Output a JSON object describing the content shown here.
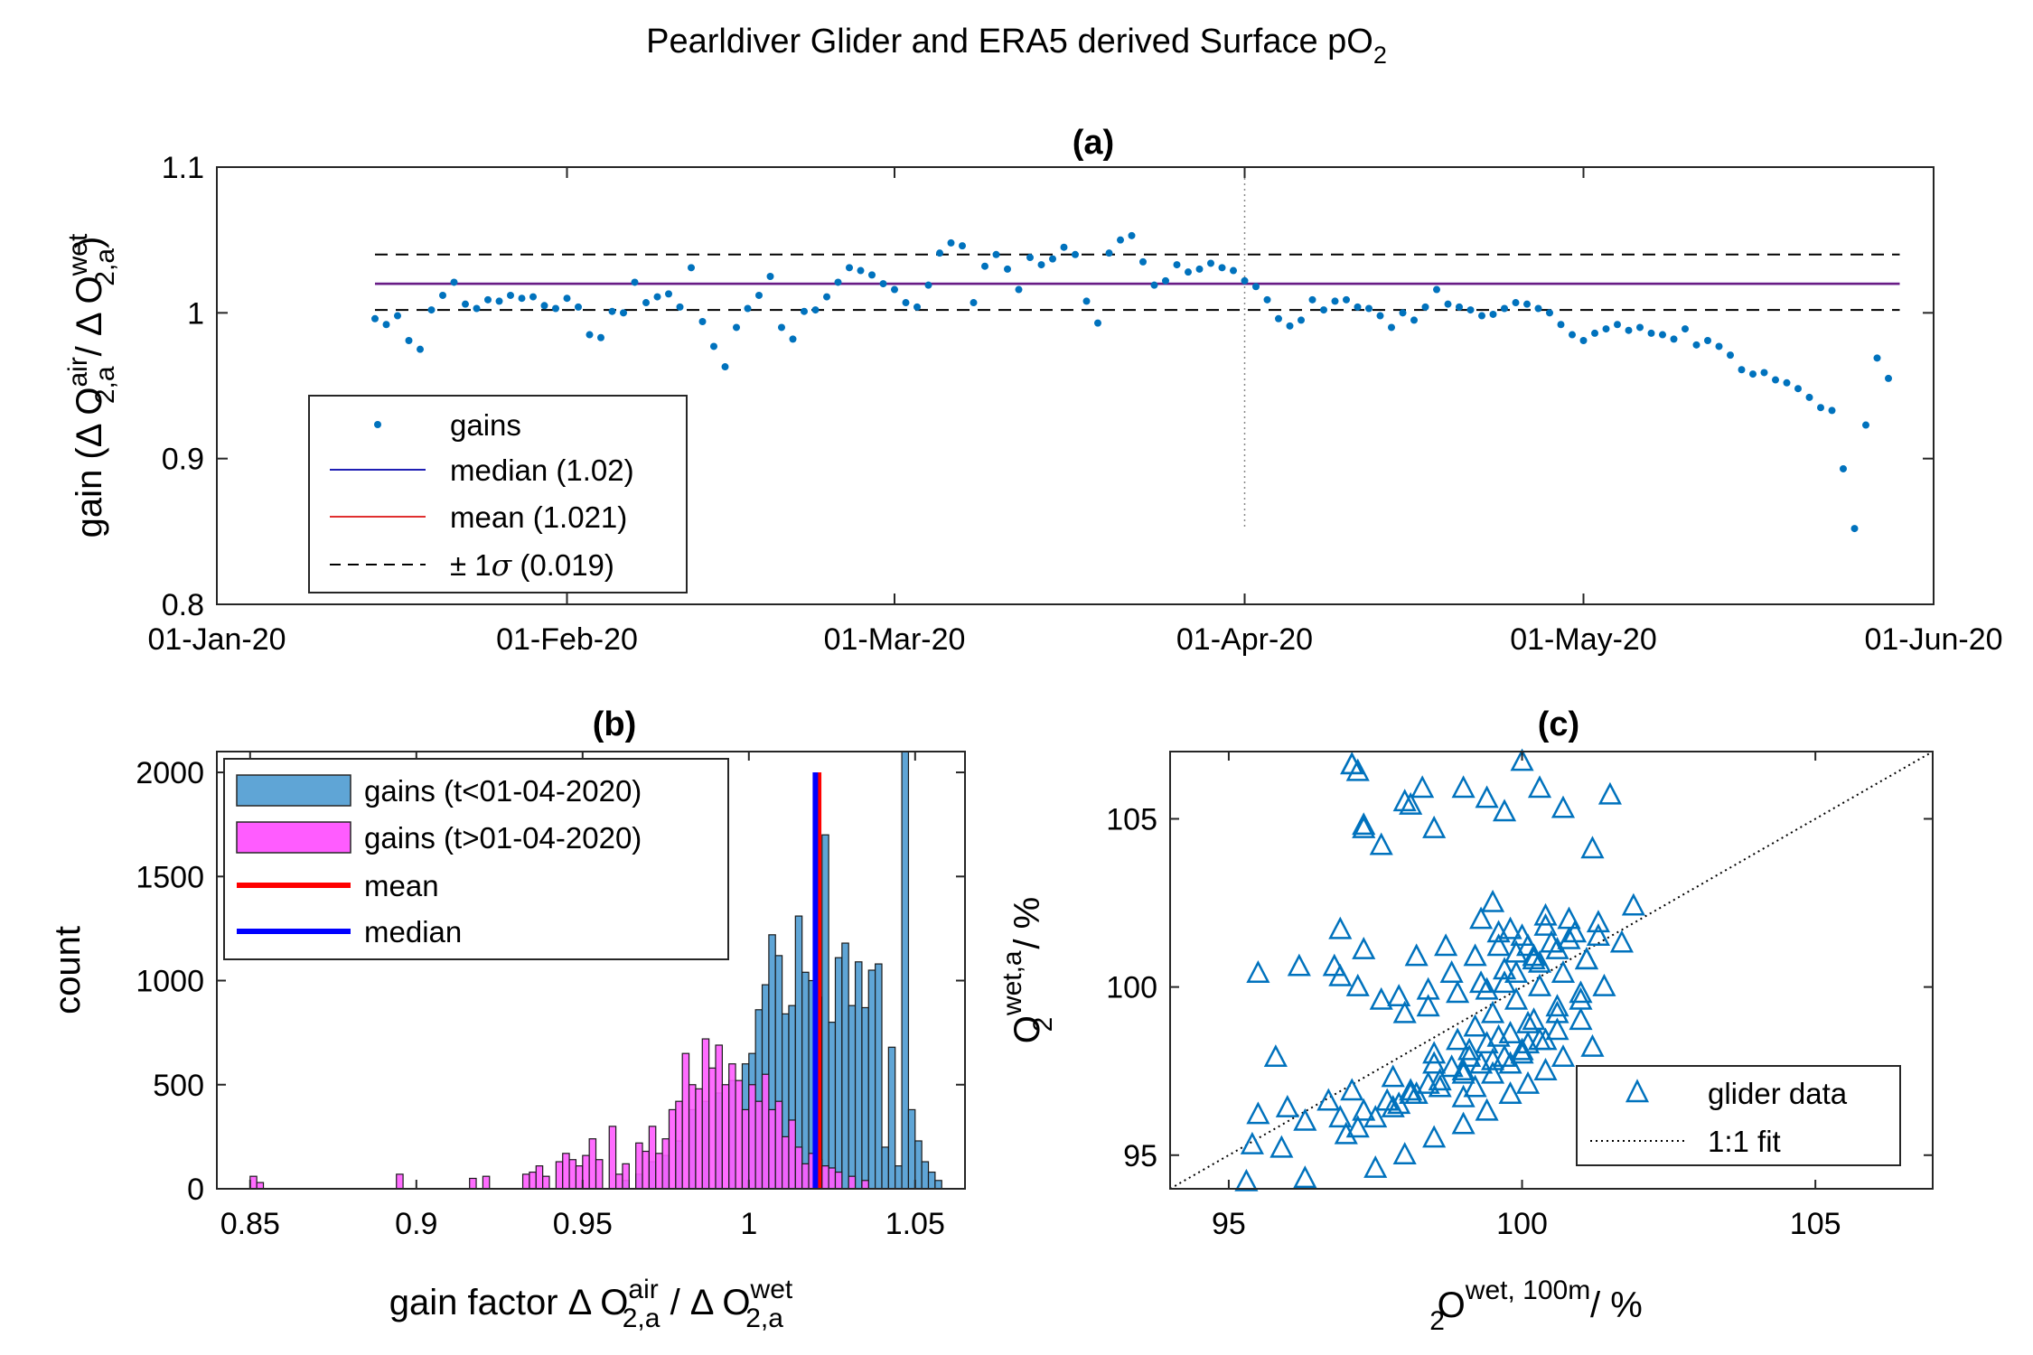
{
  "suptitle": {
    "text": "Pearldiver Glider and ERA5 derived Surface pO",
    "sub": "2"
  },
  "colors": {
    "gains": "#0072BD",
    "median_line": "#1f1fb4",
    "mean_line": "#e03030",
    "combined_line": "#7d1a78",
    "hist_before": "#5fa5d6",
    "hist_after": "#ff5cff",
    "hist_mean": "#ff0000",
    "hist_median": "#0000ff"
  },
  "chart_data": [
    {
      "id": "a",
      "type": "scatter",
      "title": "(a)",
      "ylabel_parts": [
        "gain (Δ O",
        "air",
        "2,a",
        " / Δ O",
        "wet",
        "2,a",
        ")"
      ],
      "xticks": [
        "01-Jan-20",
        "01-Feb-20",
        "01-Mar-20",
        "01-Apr-20",
        "01-May-20",
        "01-Jun-20"
      ],
      "xlim": [
        "2020-01-01",
        "2020-06-01"
      ],
      "ylim": [
        0.8,
        1.1
      ],
      "yticks": [
        "0.8",
        "0.9",
        "1",
        "1.1"
      ],
      "vline_date": "2020-04-01",
      "hlines": {
        "median": 1.02,
        "mean": 1.021,
        "sigma_upper": 1.04,
        "sigma_lower": 1.002
      },
      "series": [
        {
          "name": "gains",
          "x": [
            "2020-01-15",
            "2020-01-16",
            "2020-01-17",
            "2020-01-18",
            "2020-01-19",
            "2020-01-20",
            "2020-01-21",
            "2020-01-22",
            "2020-01-23",
            "2020-01-24",
            "2020-01-25",
            "2020-01-26",
            "2020-01-27",
            "2020-01-28",
            "2020-01-29",
            "2020-01-30",
            "2020-01-31",
            "2020-02-01",
            "2020-02-02",
            "2020-02-03",
            "2020-02-04",
            "2020-02-05",
            "2020-02-06",
            "2020-02-07",
            "2020-02-08",
            "2020-02-09",
            "2020-02-10",
            "2020-02-11",
            "2020-02-12",
            "2020-02-13",
            "2020-02-14",
            "2020-02-15",
            "2020-02-16",
            "2020-02-17",
            "2020-02-18",
            "2020-02-19",
            "2020-02-20",
            "2020-02-21",
            "2020-02-22",
            "2020-02-23",
            "2020-02-24",
            "2020-02-25",
            "2020-02-26",
            "2020-02-27",
            "2020-02-28",
            "2020-02-29",
            "2020-03-01",
            "2020-03-02",
            "2020-03-03",
            "2020-03-04",
            "2020-03-05",
            "2020-03-06",
            "2020-03-07",
            "2020-03-08",
            "2020-03-09",
            "2020-03-10",
            "2020-03-11",
            "2020-03-12",
            "2020-03-13",
            "2020-03-14",
            "2020-03-15",
            "2020-03-16",
            "2020-03-17",
            "2020-03-18",
            "2020-03-19",
            "2020-03-20",
            "2020-03-21",
            "2020-03-22",
            "2020-03-23",
            "2020-03-24",
            "2020-03-25",
            "2020-03-26",
            "2020-03-27",
            "2020-03-28",
            "2020-03-29",
            "2020-03-30",
            "2020-03-31",
            "2020-04-01",
            "2020-04-02",
            "2020-04-03",
            "2020-04-04",
            "2020-04-05",
            "2020-04-06",
            "2020-04-07",
            "2020-04-08",
            "2020-04-09",
            "2020-04-10",
            "2020-04-11",
            "2020-04-12",
            "2020-04-13",
            "2020-04-14",
            "2020-04-15",
            "2020-04-16",
            "2020-04-17",
            "2020-04-18",
            "2020-04-19",
            "2020-04-20",
            "2020-04-21",
            "2020-04-22",
            "2020-04-23",
            "2020-04-24",
            "2020-04-25",
            "2020-04-26",
            "2020-04-27",
            "2020-04-28",
            "2020-04-29",
            "2020-04-30",
            "2020-05-01",
            "2020-05-02",
            "2020-05-03",
            "2020-05-04",
            "2020-05-05",
            "2020-05-06",
            "2020-05-07",
            "2020-05-08",
            "2020-05-09",
            "2020-05-10",
            "2020-05-11",
            "2020-05-12",
            "2020-05-13",
            "2020-05-14",
            "2020-05-15",
            "2020-05-16",
            "2020-05-17",
            "2020-05-18",
            "2020-05-19",
            "2020-05-20",
            "2020-05-21",
            "2020-05-22",
            "2020-05-23",
            "2020-05-24",
            "2020-05-25",
            "2020-05-26",
            "2020-05-27",
            "2020-05-28"
          ],
          "y": [
            0.996,
            0.992,
            0.998,
            0.981,
            0.975,
            1.002,
            1.012,
            1.021,
            1.006,
            1.003,
            1.009,
            1.008,
            1.012,
            1.01,
            1.011,
            1.005,
            1.003,
            1.01,
            1.004,
            0.985,
            0.983,
            1.001,
            1.0,
            1.021,
            1.007,
            1.011,
            1.013,
            1.004,
            1.031,
            0.994,
            0.977,
            0.963,
            0.99,
            1.003,
            1.012,
            1.025,
            0.99,
            0.982,
            1.001,
            1.002,
            1.011,
            1.021,
            1.031,
            1.029,
            1.026,
            1.02,
            1.016,
            1.007,
            1.004,
            1.019,
            1.041,
            1.048,
            1.046,
            1.007,
            1.032,
            1.04,
            1.03,
            1.016,
            1.038,
            1.033,
            1.037,
            1.045,
            1.04,
            1.008,
            0.993,
            1.041,
            1.05,
            1.053,
            1.035,
            1.019,
            1.022,
            1.033,
            1.028,
            1.03,
            1.034,
            1.031,
            1.029,
            1.022,
            1.018,
            1.009,
            0.996,
            0.991,
            0.995,
            1.009,
            1.002,
            1.008,
            1.009,
            1.004,
            1.003,
            0.998,
            0.99,
            1.0,
            0.995,
            1.004,
            1.016,
            1.006,
            1.004,
            1.002,
            0.998,
            0.999,
            1.003,
            1.007,
            1.006,
            1.003,
            1.0,
            0.992,
            0.985,
            0.981,
            0.986,
            0.989,
            0.992,
            0.988,
            0.99,
            0.986,
            0.985,
            0.982,
            0.989,
            0.978,
            0.981,
            0.977,
            0.971,
            0.961,
            0.958,
            0.959,
            0.954,
            0.952,
            0.948,
            0.942,
            0.935,
            0.933,
            0.893,
            0.852,
            0.923,
            0.969,
            0.955
          ]
        }
      ],
      "legend": [
        {
          "label": "gains"
        },
        {
          "label": "median (1.02)"
        },
        {
          "label": "mean (1.021)"
        },
        {
          "label_parts": [
            "± 1",
            "σ",
            " (0.019)"
          ]
        }
      ]
    },
    {
      "id": "b",
      "type": "bar",
      "title": "(b)",
      "ylabel": "count",
      "xlabel_parts": [
        "gain factor Δ O",
        "air",
        "2,a",
        " / Δ O",
        "wet",
        "2,a"
      ],
      "xlim": [
        0.84,
        1.065
      ],
      "ylim": [
        0,
        2100
      ],
      "xticks": [
        "0.85",
        "0.9",
        "0.95",
        "1",
        "1.05"
      ],
      "yticks": [
        "0",
        "500",
        "1000",
        "1500",
        "2000"
      ],
      "bin_width": 0.002,
      "series": [
        {
          "name": "gains (t<01-04-2020)",
          "bin_left": [
            0.962,
            0.966,
            0.97,
            0.974,
            0.978,
            0.982,
            0.986,
            0.99,
            0.994,
            0.998,
            1.0,
            1.002,
            1.004,
            1.006,
            1.008,
            1.01,
            1.012,
            1.014,
            1.016,
            1.018,
            1.02,
            1.022,
            1.024,
            1.026,
            1.028,
            1.03,
            1.032,
            1.034,
            1.036,
            1.038,
            1.04,
            1.042,
            1.044,
            1.046,
            1.048,
            1.05,
            1.052,
            1.054,
            1.056
          ],
          "values": [
            40,
            70,
            130,
            160,
            230,
            380,
            420,
            460,
            520,
            600,
            650,
            860,
            980,
            1220,
            1120,
            840,
            880,
            1310,
            1040,
            1000,
            920,
            1700,
            800,
            1110,
            1180,
            880,
            1090,
            870,
            1050,
            1080,
            200,
            680,
            110,
            2100,
            380,
            230,
            130,
            80,
            40
          ]
        },
        {
          "name": "gains (t>01-04-2020)",
          "bin_left": [
            0.85,
            0.852,
            0.894,
            0.916,
            0.92,
            0.932,
            0.934,
            0.936,
            0.938,
            0.942,
            0.944,
            0.946,
            0.948,
            0.95,
            0.952,
            0.954,
            0.958,
            0.96,
            0.962,
            0.966,
            0.968,
            0.97,
            0.972,
            0.974,
            0.976,
            0.978,
            0.98,
            0.982,
            0.984,
            0.986,
            0.988,
            0.99,
            0.992,
            0.994,
            0.996,
            0.998,
            1.0,
            1.002,
            1.004,
            1.006,
            1.008,
            1.01,
            1.012,
            1.014,
            1.016,
            1.018,
            1.02,
            1.022,
            1.024,
            1.026,
            1.03,
            1.034
          ],
          "values": [
            60,
            30,
            70,
            50,
            60,
            70,
            80,
            110,
            60,
            130,
            170,
            140,
            110,
            160,
            240,
            140,
            300,
            70,
            120,
            220,
            180,
            300,
            170,
            240,
            380,
            420,
            650,
            500,
            480,
            720,
            580,
            690,
            500,
            600,
            520,
            380,
            500,
            420,
            550,
            380,
            420,
            250,
            330,
            200,
            120,
            170,
            140,
            110,
            100,
            80,
            60,
            40
          ]
        }
      ],
      "mean": 1.021,
      "median": 1.02,
      "marker_top": 2000,
      "legend": [
        "gains (t<01-04-2020)",
        "gains (t>01-04-2020)",
        "mean",
        "median"
      ]
    },
    {
      "id": "c",
      "type": "scatter",
      "title": "(c)",
      "xlabel_parts": [
        "O",
        "wet, 100m",
        "2",
        " / %"
      ],
      "ylabel_parts": [
        "O",
        "wet,a",
        "2",
        " / %"
      ],
      "xlim": [
        94,
        107
      ],
      "ylim": [
        94,
        107
      ],
      "xticks": [
        "95",
        "100",
        "105"
      ],
      "yticks": [
        "95",
        "100",
        "105"
      ],
      "series": [
        {
          "name": "glider data",
          "x": [
            95.3,
            95.4,
            95.9,
            96.3,
            95.5,
            95.8,
            96.2,
            96.9,
            97.1,
            97.3,
            97.6,
            98.0,
            98.3,
            97.0,
            97.2,
            97.5,
            97.9,
            98.2,
            98.6,
            99.0,
            99.3,
            99.7,
            100.1,
            97.8,
            98.1,
            98.4,
            98.8,
            99.1,
            99.4,
            99.8,
            100.2,
            100.6,
            101.0,
            98.5,
            98.9,
            99.2,
            99.5,
            99.9,
            100.3,
            100.7,
            101.1,
            97.1,
            97.3,
            97.2,
            98.1,
            98.5,
            99.0,
            99.4,
            99.7,
            100.0,
            100.3,
            100.7,
            101.2,
            101.5,
            101.9,
            99.5,
            99.8,
            100.1,
            100.4,
            100.8,
            101.1,
            96.9,
            97.2,
            97.6,
            98.0,
            98.4,
            98.8,
            99.2,
            99.6,
            100.0,
            100.4,
            100.8,
            96.8,
            97.3,
            98.2,
            98.7,
            99.3,
            99.6,
            99.9,
            100.2,
            95.5,
            96.0,
            96.7,
            97.1,
            97.8,
            98.5,
            99.1,
            99.6,
            100.1,
            100.6,
            101.0,
            101.4,
            99.4,
            99.7,
            99.9,
            100.3,
            100.6,
            101.3,
            101.7,
            97.9,
            98.4,
            98.9,
            99.3,
            99.7,
            100.2,
            100.5,
            100.9,
            101.3,
            99.0,
            99.2,
            99.5,
            99.8,
            100.0,
            100.3,
            100.6,
            101.0,
            96.3,
            96.9,
            97.3,
            97.7,
            98.1,
            98.6,
            99.0,
            99.5,
            100.0,
            100.4,
            97.5,
            98.0,
            98.5,
            99.0,
            99.4,
            99.8,
            100.1,
            100.4,
            100.7,
            101.2
          ],
          "y": [
            94.2,
            95.3,
            95.2,
            94.3,
            100.4,
            97.9,
            100.6,
            101.7,
            106.6,
            104.8,
            104.2,
            105.5,
            105.9,
            95.6,
            95.8,
            96.1,
            96.5,
            96.8,
            97.0,
            97.4,
            97.7,
            97.9,
            98.3,
            96.4,
            96.8,
            97.1,
            97.6,
            97.9,
            98.3,
            98.6,
            99.0,
            99.4,
            99.8,
            98.0,
            98.4,
            98.8,
            99.2,
            99.6,
            100.0,
            100.4,
            100.8,
            106.6,
            104.7,
            106.4,
            105.4,
            104.7,
            105.9,
            105.6,
            105.2,
            106.7,
            105.9,
            105.3,
            104.1,
            105.7,
            102.4,
            102.5,
            101.7,
            101.2,
            102.1,
            101.4,
            100.8,
            100.3,
            100.0,
            99.6,
            99.2,
            99.9,
            100.4,
            100.9,
            101.2,
            101.5,
            101.8,
            102.0,
            100.6,
            101.1,
            100.9,
            101.2,
            102.0,
            101.6,
            101.0,
            100.8,
            96.2,
            96.4,
            96.6,
            96.9,
            97.3,
            97.7,
            98.1,
            98.5,
            98.9,
            99.2,
            99.6,
            100.0,
            99.9,
            100.1,
            100.4,
            100.7,
            101.1,
            101.5,
            101.3,
            99.7,
            99.4,
            99.8,
            100.1,
            100.5,
            100.9,
            101.3,
            101.6,
            101.9,
            96.7,
            97.0,
            97.4,
            97.7,
            98.0,
            98.4,
            98.7,
            99.0,
            96.0,
            96.1,
            96.3,
            96.6,
            96.9,
            97.2,
            97.5,
            97.8,
            98.1,
            98.4,
            94.6,
            95.0,
            95.5,
            95.9,
            96.3,
            96.8,
            97.1,
            97.5,
            97.9,
            98.2
          ]
        },
        {
          "name": "1:1 fit",
          "x": [
            94,
            107
          ],
          "y": [
            94,
            107
          ]
        }
      ],
      "legend": [
        "glider data",
        "1:1 fit"
      ]
    }
  ]
}
